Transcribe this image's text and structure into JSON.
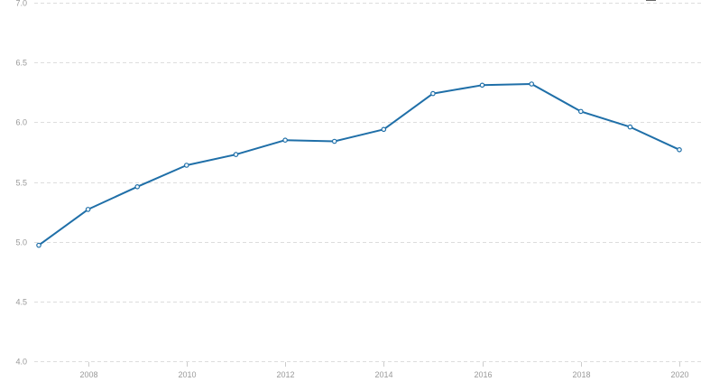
{
  "chart_data": {
    "type": "line",
    "title": "",
    "xlabel": "",
    "ylabel": "",
    "x": [
      2007,
      2008,
      2009,
      2010,
      2011,
      2012,
      2013,
      2014,
      2015,
      2016,
      2017,
      2018,
      2019,
      2020
    ],
    "series": [
      {
        "values": [
          4.97,
          5.27,
          5.46,
          5.64,
          5.73,
          5.85,
          5.84,
          5.94,
          6.24,
          6.31,
          6.32,
          6.09,
          5.96,
          5.77
        ]
      }
    ],
    "ylim": [
      4.0,
      7.0
    ],
    "xlim": [
      2007,
      2020
    ],
    "y_ticks": [
      "4.0",
      "4.5",
      "5.0",
      "5.5",
      "6.0",
      "6.5",
      "7.0"
    ],
    "x_ticks": [
      "2008",
      "2010",
      "2012",
      "2014",
      "2016",
      "2018",
      "2020"
    ],
    "grid": true,
    "colors": {
      "line": "#1f6fa8",
      "grid": "#dddddd",
      "tick_text": "#999999"
    }
  }
}
